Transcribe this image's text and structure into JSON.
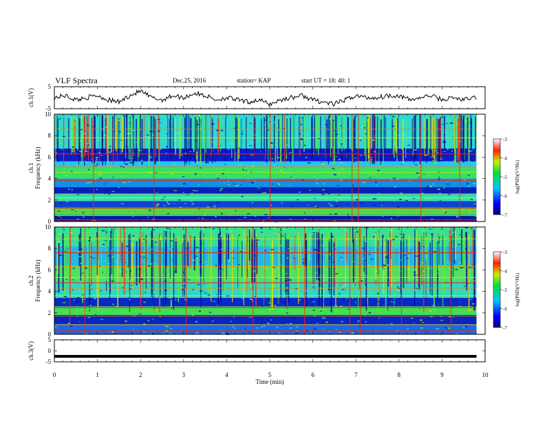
{
  "header": {
    "title": "VLF Spectra",
    "date": "Dec.25, 2016",
    "station": "station= KAP",
    "start": "start  UT  =   18: 40: 1"
  },
  "chart_data": [
    {
      "type": "line",
      "panel": "ch1-waveform",
      "ylabel": "ch.1(V)",
      "ylim": [
        -5,
        5
      ],
      "yticks": [
        "5",
        "-5"
      ],
      "xlim": [
        0,
        10
      ],
      "x": [
        0,
        0.25,
        0.5,
        0.75,
        1,
        1.25,
        1.5,
        1.75,
        2,
        2.25,
        2.5,
        2.75,
        3,
        3.25,
        3.5,
        3.75,
        4,
        4.25,
        4.5,
        4.75,
        5,
        5.25,
        5.5,
        5.75,
        6,
        6.25,
        6.5,
        6.75,
        7,
        7.25,
        7.5,
        7.75,
        8,
        8.25,
        8.5,
        8.75,
        9,
        9.25,
        9.5,
        9.75
      ],
      "y": [
        0,
        1,
        -1,
        0,
        1,
        -1,
        -2,
        1,
        3,
        0,
        -1,
        1,
        0,
        2,
        1,
        -1,
        0,
        -1,
        -2,
        -1,
        -3,
        -1,
        0,
        1,
        -1,
        -2,
        -3,
        -1,
        1,
        0,
        0,
        1,
        1,
        -1,
        0,
        1,
        -1,
        0,
        -1,
        0
      ]
    },
    {
      "type": "heatmap",
      "panel": "ch1-spectrogram",
      "ylabel": "ch.1\nFrequency  (kHz)",
      "ylim": [
        0,
        10
      ],
      "yticks": [
        "0",
        "2",
        "4",
        "6",
        "8",
        "10"
      ],
      "xlim": [
        0,
        10
      ],
      "colorbar": {
        "label": "log(PSD)(V²/Hz)",
        "range": [
          -7,
          -3
        ],
        "ticks": [
          "-3",
          "-4",
          "-5",
          "-6",
          "-7"
        ]
      }
    },
    {
      "type": "heatmap",
      "panel": "ch2-spectrogram",
      "ylabel": "ch.2\nFrequency  (kHz)",
      "ylim": [
        0,
        10
      ],
      "yticks": [
        "0",
        "2",
        "4",
        "6",
        "8",
        "10"
      ],
      "xlim": [
        0,
        10
      ],
      "colorbar": {
        "label": "log(PSD)(V²/Hz)",
        "range": [
          -7,
          -3
        ],
        "ticks": [
          "-3",
          "-4",
          "-5",
          "-6",
          "-7"
        ]
      }
    },
    {
      "type": "line",
      "panel": "ch3-waveform",
      "ylabel": "ch.3(V)",
      "ylim": [
        -5,
        5
      ],
      "yticks": [
        "5",
        "0",
        "-5"
      ],
      "xlim": [
        0,
        10
      ],
      "x": [
        0,
        9.8
      ],
      "y": [
        -2.5,
        -2.5
      ]
    }
  ],
  "xaxis": {
    "label": "Time  (min)",
    "ticks": [
      "0",
      "1",
      "2",
      "3",
      "4",
      "5",
      "6",
      "7",
      "8",
      "9",
      "10"
    ]
  },
  "colors": {
    "spectrum_low": "#00008b",
    "spectrum_mid": "#20d8d0",
    "spectrum_high": "#ff0000"
  }
}
